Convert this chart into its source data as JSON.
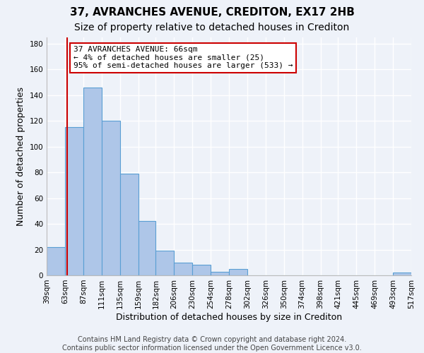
{
  "title": "37, AVRANCHES AVENUE, CREDITON, EX17 2HB",
  "subtitle": "Size of property relative to detached houses in Crediton",
  "xlabel": "Distribution of detached houses by size in Crediton",
  "ylabel": "Number of detached properties",
  "bar_edges": [
    39,
    63,
    87,
    111,
    135,
    159,
    182,
    206,
    230,
    254,
    278,
    302,
    326,
    350,
    374,
    398,
    421,
    445,
    469,
    493,
    517
  ],
  "bar_heights": [
    22,
    115,
    146,
    120,
    79,
    42,
    19,
    10,
    8,
    3,
    5,
    0,
    0,
    0,
    0,
    0,
    0,
    0,
    0,
    2
  ],
  "bar_color": "#aec6e8",
  "bar_edgecolor": "#5a9fd4",
  "property_line_x": 66,
  "property_line_color": "#cc0000",
  "annotation_line1": "37 AVRANCHES AVENUE: 66sqm",
  "annotation_line2": "← 4% of detached houses are smaller (25)",
  "annotation_line3": "95% of semi-detached houses are larger (533) →",
  "annotation_box_color": "#ffffff",
  "annotation_box_edgecolor": "#cc0000",
  "tick_labels": [
    "39sqm",
    "63sqm",
    "87sqm",
    "111sqm",
    "135sqm",
    "159sqm",
    "182sqm",
    "206sqm",
    "230sqm",
    "254sqm",
    "278sqm",
    "302sqm",
    "326sqm",
    "350sqm",
    "374sqm",
    "398sqm",
    "421sqm",
    "445sqm",
    "469sqm",
    "493sqm",
    "517sqm"
  ],
  "ylim": [
    0,
    185
  ],
  "yticks": [
    0,
    20,
    40,
    60,
    80,
    100,
    120,
    140,
    160,
    180
  ],
  "footer_line1": "Contains HM Land Registry data © Crown copyright and database right 2024.",
  "footer_line2": "Contains public sector information licensed under the Open Government Licence v3.0.",
  "bg_color": "#eef2f9",
  "grid_color": "#ffffff",
  "title_fontsize": 11,
  "subtitle_fontsize": 10,
  "axis_label_fontsize": 9,
  "tick_fontsize": 7.5,
  "annotation_fontsize": 8,
  "footer_fontsize": 7
}
